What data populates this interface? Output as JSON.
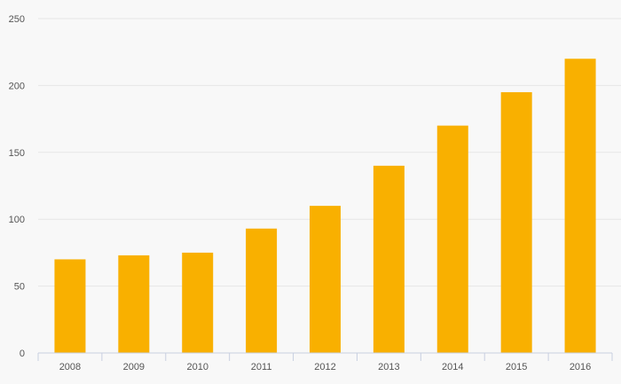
{
  "chart_data": {
    "type": "bar",
    "categories": [
      "2008",
      "2009",
      "2010",
      "2011",
      "2012",
      "2013",
      "2014",
      "2015",
      "2016"
    ],
    "values": [
      70,
      73,
      75,
      93,
      110,
      140,
      170,
      195,
      220
    ],
    "ylim": [
      0,
      250
    ],
    "yticks": [
      "0",
      "50",
      "100",
      "150",
      "200",
      "250"
    ],
    "grid": true,
    "colors": {
      "bar": "#f9b000",
      "grid": "#e6e6e6",
      "axis": "#c8cfe0",
      "text": "#555555",
      "background": "#f8f8f8"
    }
  }
}
